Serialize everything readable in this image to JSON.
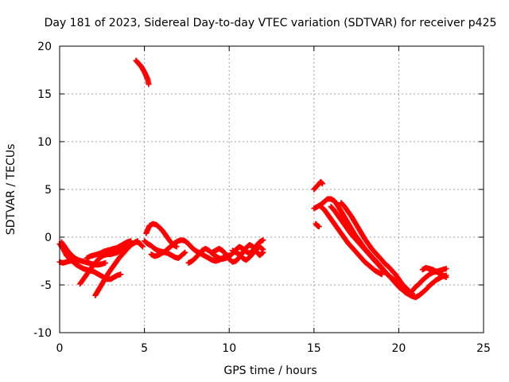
{
  "chart_data": {
    "type": "scatter",
    "title": "Day 181 of 2023, Sidereal Day-to-day VTEC variation (SDTVAR) for receiver p425",
    "xlabel": "GPS time / hours",
    "ylabel": "SDTVAR / TECUs",
    "xlim": [
      0,
      25
    ],
    "ylim": [
      -10,
      20
    ],
    "xticks": [
      0,
      5,
      10,
      15,
      20,
      25
    ],
    "yticks": [
      -10,
      -5,
      0,
      5,
      10,
      15,
      20
    ],
    "grid": true,
    "marker": "+",
    "color": "#ff0000",
    "series": [
      {
        "name": "p425",
        "x": [],
        "y": []
      }
    ],
    "traces": [
      [
        [
          0.0,
          -0.7
        ],
        [
          0.2,
          -1.2
        ],
        [
          0.4,
          -1.9
        ],
        [
          0.6,
          -2.3
        ],
        [
          0.8,
          -2.6
        ],
        [
          1.0,
          -2.9
        ],
        [
          1.2,
          -3.1
        ],
        [
          1.4,
          -3.3
        ],
        [
          1.6,
          -3.4
        ],
        [
          1.8,
          -3.5
        ],
        [
          2.0,
          -3.6
        ],
        [
          2.2,
          -3.8
        ],
        [
          2.4,
          -4.0
        ],
        [
          2.6,
          -4.2
        ],
        [
          2.8,
          -4.4
        ],
        [
          3.0,
          -4.4
        ],
        [
          3.2,
          -4.2
        ],
        [
          3.4,
          -4.0
        ],
        [
          3.6,
          -3.9
        ]
      ],
      [
        [
          0.1,
          -0.5
        ],
        [
          0.3,
          -1.0
        ],
        [
          0.5,
          -1.5
        ],
        [
          0.7,
          -1.9
        ],
        [
          0.9,
          -2.2
        ],
        [
          1.1,
          -2.4
        ],
        [
          1.3,
          -2.5
        ],
        [
          1.5,
          -2.6
        ],
        [
          1.7,
          -2.7
        ],
        [
          1.9,
          -2.8
        ],
        [
          2.1,
          -2.9
        ],
        [
          2.3,
          -2.9
        ],
        [
          2.5,
          -2.8
        ],
        [
          2.7,
          -2.7
        ]
      ],
      [
        [
          0.0,
          -2.6
        ],
        [
          0.2,
          -2.7
        ],
        [
          0.4,
          -2.6
        ],
        [
          0.6,
          -2.5
        ],
        [
          0.8,
          -2.4
        ]
      ],
      [
        [
          1.2,
          -4.9
        ],
        [
          1.4,
          -4.4
        ],
        [
          1.6,
          -3.9
        ],
        [
          1.8,
          -3.4
        ],
        [
          2.0,
          -2.9
        ],
        [
          2.2,
          -2.5
        ],
        [
          2.4,
          -2.1
        ],
        [
          2.6,
          -1.9
        ],
        [
          2.8,
          -1.8
        ],
        [
          3.0,
          -1.8
        ],
        [
          3.2,
          -1.7
        ],
        [
          3.4,
          -1.6
        ],
        [
          3.6,
          -1.4
        ],
        [
          3.8,
          -1.2
        ],
        [
          4.0,
          -1.0
        ],
        [
          4.2,
          -0.8
        ],
        [
          4.4,
          -0.6
        ],
        [
          4.6,
          -0.4
        ]
      ],
      [
        [
          2.1,
          -6.1
        ],
        [
          2.3,
          -5.5
        ],
        [
          2.5,
          -4.9
        ],
        [
          2.7,
          -4.3
        ],
        [
          2.9,
          -3.7
        ],
        [
          3.1,
          -3.2
        ],
        [
          3.3,
          -2.7
        ],
        [
          3.5,
          -2.2
        ],
        [
          3.7,
          -1.8
        ],
        [
          3.9,
          -1.4
        ],
        [
          4.1,
          -1.0
        ],
        [
          4.3,
          -0.7
        ],
        [
          4.5,
          -0.5
        ],
        [
          4.7,
          -0.6
        ],
        [
          4.9,
          -1.0
        ]
      ],
      [
        [
          1.6,
          -2.2
        ],
        [
          1.8,
          -2.0
        ],
        [
          2.0,
          -1.9
        ],
        [
          2.2,
          -1.8
        ],
        [
          2.4,
          -1.7
        ],
        [
          2.6,
          -1.5
        ],
        [
          2.8,
          -1.4
        ],
        [
          3.0,
          -1.3
        ],
        [
          3.2,
          -1.2
        ],
        [
          3.4,
          -1.1
        ],
        [
          3.6,
          -0.9
        ],
        [
          3.8,
          -0.7
        ],
        [
          4.0,
          -0.5
        ],
        [
          4.2,
          -0.4
        ]
      ],
      [
        [
          4.5,
          18.5
        ],
        [
          4.6,
          18.3
        ],
        [
          4.7,
          18.1
        ],
        [
          4.8,
          17.9
        ],
        [
          4.9,
          17.6
        ],
        [
          5.0,
          17.3
        ],
        [
          5.1,
          16.9
        ],
        [
          5.2,
          16.5
        ],
        [
          5.25,
          16.0
        ]
      ],
      [
        [
          5.0,
          -0.4
        ],
        [
          5.2,
          -0.7
        ],
        [
          5.4,
          -0.9
        ],
        [
          5.6,
          -1.2
        ],
        [
          5.8,
          -1.4
        ],
        [
          6.0,
          -1.5
        ],
        [
          6.2,
          -1.6
        ],
        [
          6.4,
          -1.7
        ],
        [
          6.6,
          -1.9
        ],
        [
          6.8,
          -2.1
        ],
        [
          7.0,
          -2.2
        ],
        [
          7.2,
          -1.9
        ],
        [
          7.4,
          -1.6
        ]
      ],
      [
        [
          5.1,
          0.4
        ],
        [
          5.3,
          1.2
        ],
        [
          5.5,
          1.4
        ],
        [
          5.7,
          1.3
        ],
        [
          5.9,
          1.0
        ],
        [
          6.1,
          0.6
        ],
        [
          6.3,
          0.1
        ],
        [
          6.5,
          -0.4
        ],
        [
          6.7,
          -0.8
        ],
        [
          6.9,
          -1.0
        ]
      ],
      [
        [
          5.4,
          -1.8
        ],
        [
          5.6,
          -2.0
        ],
        [
          5.8,
          -1.9
        ],
        [
          6.0,
          -1.7
        ],
        [
          6.2,
          -1.5
        ],
        [
          6.4,
          -1.2
        ],
        [
          6.6,
          -0.9
        ],
        [
          6.8,
          -0.6
        ],
        [
          7.0,
          -0.4
        ],
        [
          7.2,
          -0.3
        ],
        [
          7.4,
          -0.4
        ],
        [
          7.6,
          -0.7
        ],
        [
          7.8,
          -1.1
        ],
        [
          8.0,
          -1.4
        ],
        [
          8.2,
          -1.6
        ],
        [
          8.4,
          -1.8
        ],
        [
          8.6,
          -2.0
        ],
        [
          8.8,
          -2.2
        ],
        [
          9.0,
          -2.4
        ],
        [
          9.2,
          -2.5
        ],
        [
          9.4,
          -2.4
        ],
        [
          9.6,
          -2.2
        ],
        [
          9.8,
          -2.0
        ],
        [
          10.0,
          -1.9
        ]
      ],
      [
        [
          7.6,
          -2.7
        ],
        [
          7.8,
          -2.5
        ],
        [
          8.0,
          -2.2
        ],
        [
          8.2,
          -1.8
        ],
        [
          8.4,
          -1.4
        ],
        [
          8.6,
          -1.2
        ],
        [
          8.8,
          -1.4
        ],
        [
          9.0,
          -1.7
        ],
        [
          9.2,
          -2.0
        ],
        [
          9.4,
          -2.2
        ],
        [
          9.6,
          -2.3
        ],
        [
          9.8,
          -2.2
        ],
        [
          10.0,
          -2.0
        ],
        [
          10.2,
          -1.7
        ],
        [
          10.4,
          -1.3
        ],
        [
          10.6,
          -1.0
        ],
        [
          10.8,
          -1.2
        ],
        [
          11.0,
          -1.5
        ],
        [
          11.2,
          -1.7
        ],
        [
          11.4,
          -1.4
        ],
        [
          11.6,
          -0.9
        ],
        [
          11.8,
          -0.5
        ],
        [
          12.0,
          -0.3
        ]
      ],
      [
        [
          9.0,
          -1.6
        ],
        [
          9.2,
          -1.4
        ],
        [
          9.4,
          -1.2
        ],
        [
          9.6,
          -1.4
        ],
        [
          9.8,
          -1.8
        ],
        [
          10.0,
          -2.3
        ],
        [
          10.2,
          -2.6
        ],
        [
          10.4,
          -2.5
        ],
        [
          10.6,
          -2.1
        ],
        [
          10.8,
          -1.6
        ],
        [
          11.0,
          -1.1
        ],
        [
          11.2,
          -0.8
        ],
        [
          11.4,
          -1.0
        ],
        [
          11.6,
          -1.5
        ],
        [
          11.8,
          -1.9
        ],
        [
          12.0,
          -1.6
        ]
      ],
      [
        [
          10.2,
          -1.4
        ],
        [
          10.4,
          -1.6
        ],
        [
          10.6,
          -1.8
        ],
        [
          10.8,
          -2.2
        ],
        [
          11.0,
          -2.4
        ],
        [
          11.2,
          -2.1
        ],
        [
          11.4,
          -1.7
        ],
        [
          11.6,
          -1.2
        ],
        [
          11.8,
          -1.0
        ],
        [
          12.0,
          -1.3
        ]
      ],
      [
        [
          15.0,
          5.0
        ],
        [
          15.2,
          5.4
        ],
        [
          15.4,
          5.8
        ],
        [
          15.5,
          5.6
        ]
      ],
      [
        [
          15.1,
          1.4
        ],
        [
          15.2,
          1.2
        ],
        [
          15.3,
          1.1
        ]
      ],
      [
        [
          15.0,
          3.0
        ],
        [
          15.2,
          3.2
        ],
        [
          15.4,
          3.4
        ],
        [
          15.6,
          3.7
        ],
        [
          15.8,
          4.0
        ],
        [
          16.0,
          4.0
        ],
        [
          16.2,
          3.8
        ],
        [
          16.4,
          3.3
        ],
        [
          16.6,
          2.7
        ],
        [
          16.8,
          2.1
        ],
        [
          17.0,
          1.5
        ],
        [
          17.2,
          0.9
        ],
        [
          17.4,
          0.3
        ],
        [
          17.6,
          -0.2
        ],
        [
          17.8,
          -0.7
        ],
        [
          18.0,
          -1.2
        ],
        [
          18.2,
          -1.6
        ],
        [
          18.4,
          -2.0
        ],
        [
          18.6,
          -2.4
        ],
        [
          18.8,
          -2.8
        ],
        [
          19.0,
          -3.2
        ],
        [
          19.2,
          -3.6
        ],
        [
          19.4,
          -4.0
        ],
        [
          19.6,
          -4.4
        ],
        [
          19.8,
          -4.8
        ],
        [
          20.0,
          -5.2
        ],
        [
          20.2,
          -5.5
        ],
        [
          20.4,
          -5.8
        ],
        [
          20.6,
          -6.0
        ],
        [
          20.8,
          -6.2
        ],
        [
          21.0,
          -6.3
        ]
      ],
      [
        [
          15.4,
          3.2
        ],
        [
          15.6,
          2.9
        ],
        [
          15.8,
          2.4
        ],
        [
          16.0,
          1.9
        ],
        [
          16.2,
          1.4
        ],
        [
          16.4,
          0.9
        ],
        [
          16.6,
          0.4
        ],
        [
          16.8,
          -0.1
        ],
        [
          17.0,
          -0.6
        ],
        [
          17.2,
          -1.0
        ],
        [
          17.4,
          -1.4
        ],
        [
          17.6,
          -1.8
        ],
        [
          17.8,
          -2.2
        ],
        [
          18.0,
          -2.6
        ],
        [
          18.2,
          -2.9
        ],
        [
          18.4,
          -3.2
        ],
        [
          18.6,
          -3.5
        ],
        [
          18.8,
          -3.7
        ],
        [
          19.0,
          -3.9
        ]
      ],
      [
        [
          16.0,
          3.2
        ],
        [
          16.2,
          2.8
        ],
        [
          16.4,
          2.3
        ],
        [
          16.6,
          1.8
        ],
        [
          16.8,
          1.3
        ],
        [
          17.0,
          0.8
        ],
        [
          17.2,
          0.3
        ],
        [
          17.4,
          -0.1
        ],
        [
          17.6,
          -0.5
        ],
        [
          17.8,
          -0.9
        ],
        [
          18.0,
          -1.3
        ],
        [
          18.2,
          -1.7
        ],
        [
          18.4,
          -2.1
        ],
        [
          18.6,
          -2.5
        ],
        [
          18.8,
          -2.9
        ],
        [
          19.0,
          -3.3
        ],
        [
          19.2,
          -3.7
        ],
        [
          19.4,
          -4.0
        ],
        [
          19.6,
          -4.3
        ],
        [
          19.8,
          -4.6
        ],
        [
          20.0,
          -4.9
        ],
        [
          20.2,
          -5.2
        ],
        [
          20.4,
          -5.5
        ],
        [
          20.6,
          -5.7
        ],
        [
          20.8,
          -5.9
        ]
      ],
      [
        [
          16.6,
          3.6
        ],
        [
          16.8,
          3.2
        ],
        [
          17.0,
          2.7
        ],
        [
          17.2,
          2.2
        ],
        [
          17.4,
          1.6
        ],
        [
          17.6,
          1.0
        ],
        [
          17.8,
          0.4
        ],
        [
          18.0,
          -0.2
        ],
        [
          18.2,
          -0.7
        ],
        [
          18.4,
          -1.2
        ],
        [
          18.6,
          -1.6
        ],
        [
          18.8,
          -2.0
        ],
        [
          19.0,
          -2.4
        ],
        [
          19.2,
          -2.8
        ],
        [
          19.4,
          -3.1
        ],
        [
          19.6,
          -3.5
        ],
        [
          19.8,
          -3.9
        ],
        [
          20.0,
          -4.4
        ],
        [
          20.2,
          -4.9
        ],
        [
          20.4,
          -5.3
        ],
        [
          20.6,
          -5.6
        ]
      ],
      [
        [
          21.0,
          -6.3
        ],
        [
          21.2,
          -6.1
        ],
        [
          21.4,
          -5.8
        ],
        [
          21.6,
          -5.5
        ],
        [
          21.8,
          -5.1
        ],
        [
          22.0,
          -4.8
        ],
        [
          22.2,
          -4.5
        ],
        [
          22.4,
          -4.3
        ],
        [
          22.6,
          -4.1
        ],
        [
          22.8,
          -4.0
        ]
      ],
      [
        [
          20.6,
          -5.9
        ],
        [
          20.8,
          -5.6
        ],
        [
          21.0,
          -5.2
        ],
        [
          21.2,
          -4.9
        ],
        [
          21.4,
          -4.5
        ],
        [
          21.6,
          -4.2
        ],
        [
          21.8,
          -3.9
        ],
        [
          22.0,
          -3.7
        ],
        [
          22.2,
          -3.6
        ],
        [
          22.4,
          -3.5
        ],
        [
          22.6,
          -3.4
        ],
        [
          22.8,
          -3.3
        ]
      ],
      [
        [
          21.4,
          -3.4
        ],
        [
          21.6,
          -3.2
        ],
        [
          21.8,
          -3.3
        ],
        [
          22.0,
          -3.4
        ],
        [
          22.2,
          -3.6
        ],
        [
          22.4,
          -3.8
        ],
        [
          22.6,
          -4.0
        ],
        [
          22.8,
          -4.2
        ]
      ]
    ]
  }
}
